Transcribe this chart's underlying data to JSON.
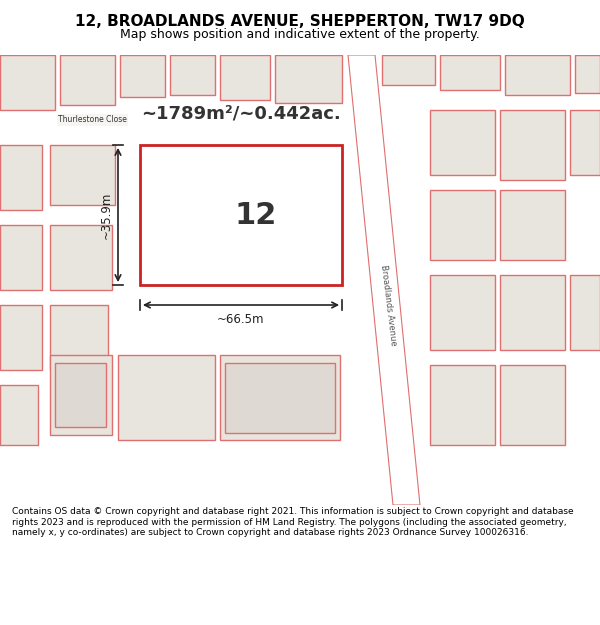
{
  "title_line1": "12, BROADLANDS AVENUE, SHEPPERTON, TW17 9DQ",
  "title_line2": "Map shows position and indicative extent of the property.",
  "footer_text": "Contains OS data © Crown copyright and database right 2021. This information is subject to Crown copyright and database rights 2023 and is reproduced with the permission of HM Land Registry. The polygons (including the associated geometry, namely x, y co-ordinates) are subject to Crown copyright and database rights 2023 Ordnance Survey 100026316.",
  "background_color": "#f0eeea",
  "map_background": "#f5f3ef",
  "building_fill": "#e8e4de",
  "building_stroke": "#e07070",
  "highlight_fill": "#ffffff",
  "highlight_stroke": "#cc2222",
  "road_color": "#ffffff",
  "road_stroke": "#e07070",
  "label_number": "12",
  "area_text": "~1789m²/~0.442ac.",
  "width_text": "~66.5m",
  "height_text": "~35.9m",
  "title_bg": "#ffffff",
  "footer_bg": "#ffffff"
}
